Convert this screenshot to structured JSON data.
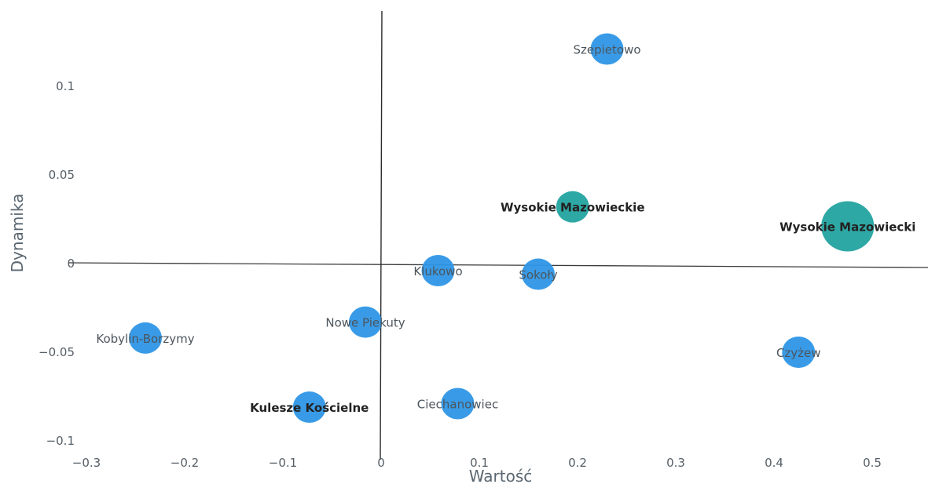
{
  "chart_data": {
    "type": "scatter",
    "title": "",
    "xlabel": "Wartość",
    "ylabel": "Dynamika",
    "xlim": [
      -0.3,
      0.55
    ],
    "ylim": [
      -0.1,
      0.14
    ],
    "grid": false,
    "x_ticks": [
      {
        "value": -0.3,
        "label": "−0.3"
      },
      {
        "value": -0.2,
        "label": "−0.2"
      },
      {
        "value": -0.1,
        "label": "−0.1"
      },
      {
        "value": 0,
        "label": "0"
      },
      {
        "value": 0.1,
        "label": "0.1"
      },
      {
        "value": 0.2,
        "label": "0.2"
      },
      {
        "value": 0.3,
        "label": "0.3"
      },
      {
        "value": 0.4,
        "label": "0.4"
      },
      {
        "value": 0.5,
        "label": "0.5"
      }
    ],
    "y_ticks": [
      {
        "value": -0.1,
        "label": "−0.1"
      },
      {
        "value": -0.05,
        "label": "−0.05"
      },
      {
        "value": 0,
        "label": "0"
      },
      {
        "value": 0.05,
        "label": "0.05"
      },
      {
        "value": 0.1,
        "label": "0.1"
      }
    ],
    "colors": {
      "gmina": "#2e96e6",
      "powiat": "#23a3a0"
    },
    "points": [
      {
        "label": "Szepietowo",
        "x": 0.23,
        "y": 0.121,
        "size": 1,
        "group": "gmina",
        "bold": false
      },
      {
        "label": "Wysokie Mazowieckie",
        "x": 0.195,
        "y": 0.032,
        "size": 1,
        "group": "powiat",
        "bold": true
      },
      {
        "label": "Wysokie Mazowiecki",
        "x": 0.475,
        "y": 0.021,
        "size": 1.6,
        "group": "powiat",
        "bold": true
      },
      {
        "label": "Klukowo",
        "x": 0.058,
        "y": -0.004,
        "size": 1,
        "group": "gmina",
        "bold": false
      },
      {
        "label": "Sokoły",
        "x": 0.16,
        "y": -0.006,
        "size": 1,
        "group": "gmina",
        "bold": false
      },
      {
        "label": "Nowe Piekuty",
        "x": -0.016,
        "y": -0.033,
        "size": 1,
        "group": "gmina",
        "bold": false
      },
      {
        "label": "Kobylin-Borzymy",
        "x": -0.24,
        "y": -0.042,
        "size": 1,
        "group": "gmina",
        "bold": false
      },
      {
        "label": "Czyżew",
        "x": 0.425,
        "y": -0.05,
        "size": 1,
        "group": "gmina",
        "bold": false
      },
      {
        "label": "Ciechanowiec",
        "x": 0.078,
        "y": -0.079,
        "size": 1,
        "group": "gmina",
        "bold": false
      },
      {
        "label": "Kulesze Kościelne",
        "x": -0.073,
        "y": -0.081,
        "size": 1,
        "group": "gmina",
        "bold": true
      }
    ]
  }
}
